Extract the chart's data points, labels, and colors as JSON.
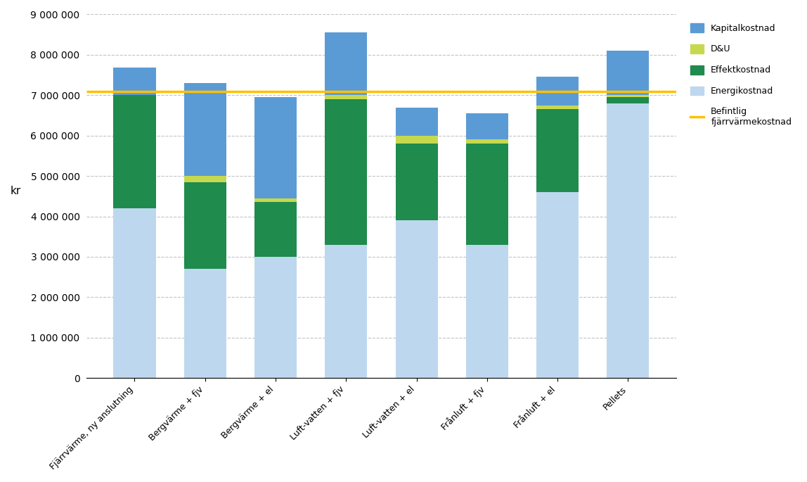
{
  "categories": [
    "Fjärrvärme, ny anslutning",
    "Bergvärme + fjv",
    "Bergvärme + el",
    "Luft-vatten + fjv",
    "Luft-vatten + el",
    "Frånluft + fjv",
    "Frånluft + el",
    "Pellets"
  ],
  "energikostnad": [
    4200000,
    2700000,
    3000000,
    3300000,
    3900000,
    3300000,
    4600000,
    6800000
  ],
  "effektkostnad": [
    2800000,
    2150000,
    1350000,
    3600000,
    1900000,
    2500000,
    2050000,
    150000
  ],
  "dou": [
    0,
    150000,
    100000,
    100000,
    200000,
    100000,
    100000,
    50000
  ],
  "kapitalkostnad": [
    680000,
    2300000,
    2500000,
    1550000,
    700000,
    650000,
    700000,
    1100000
  ],
  "reference_line": 7100000,
  "color_energi": "#BDD7EE",
  "color_effekt": "#1F8B4C",
  "color_dou": "#C6D94E",
  "color_kapital": "#5B9BD5",
  "color_ref": "#FFC000",
  "ylabel": "kr",
  "ylim": [
    0,
    9000000
  ],
  "yticks": [
    0,
    1000000,
    2000000,
    3000000,
    4000000,
    5000000,
    6000000,
    7000000,
    8000000,
    9000000
  ],
  "legend_labels": [
    "Kapitalkostnad",
    "D&U",
    "Effektkostnad",
    "Energikostnad",
    "Befintlig\nfjärrvärmekostnad"
  ],
  "background": "#FFFFFF"
}
